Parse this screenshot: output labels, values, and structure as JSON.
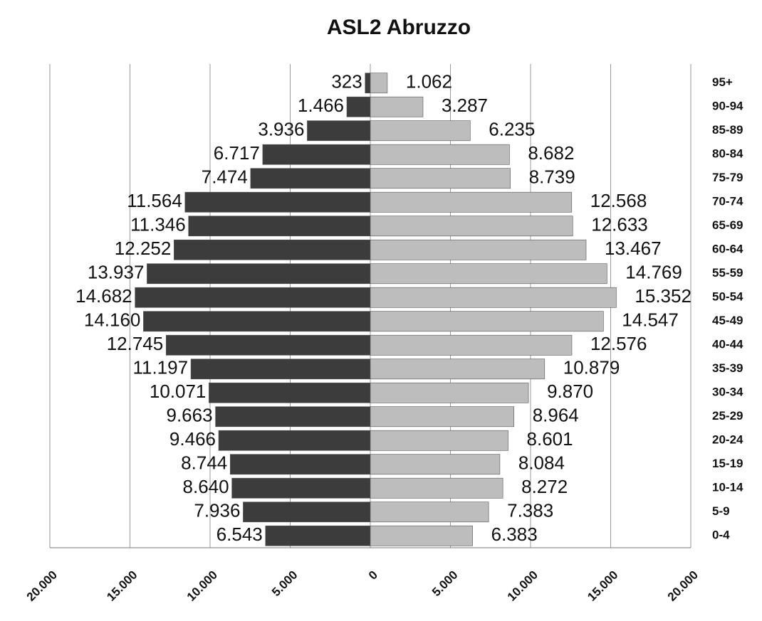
{
  "chart_data": {
    "type": "pyramid",
    "title": "ASL2 Abruzzo",
    "categories": [
      "0-4",
      "5-9",
      "10-14",
      "15-19",
      "20-24",
      "25-29",
      "30-34",
      "35-39",
      "40-44",
      "45-49",
      "50-54",
      "55-59",
      "60-64",
      "65-69",
      "70-74",
      "75-79",
      "80-84",
      "85-89",
      "90-94",
      "95+"
    ],
    "series": [
      {
        "color": "#3c3c3c",
        "values": [
          6543,
          7936,
          8640,
          8744,
          9466,
          9663,
          10071,
          11197,
          12745,
          14160,
          14682,
          13937,
          12252,
          11346,
          11564,
          7474,
          6717,
          3936,
          1466,
          323
        ],
        "value_labels": [
          "6.543",
          "7.936",
          "8.640",
          "8.744",
          "9.466",
          "9.663",
          "10.071",
          "11.197",
          "12.745",
          "14.160",
          "14.682",
          "13.937",
          "12.252",
          "11.346",
          "11.564",
          "7.474",
          "6.717",
          "3.936",
          "1.466",
          "323"
        ]
      },
      {
        "color": "#bdbdbd",
        "values": [
          6383,
          7383,
          8272,
          8084,
          8601,
          8964,
          9870,
          10879,
          12576,
          14547,
          15352,
          14769,
          13467,
          12633,
          12568,
          8739,
          8682,
          6235,
          3287,
          1062
        ],
        "value_labels": [
          "6.383",
          "7.383",
          "8.272",
          "8.084",
          "8.601",
          "8.964",
          "9.870",
          "10.879",
          "12.576",
          "14.547",
          "15.352",
          "14.769",
          "13.467",
          "12.633",
          "12.568",
          "8.739",
          "8.682",
          "6.235",
          "3.287",
          "1.062"
        ]
      }
    ],
    "xlim": [
      -20000,
      20000
    ],
    "xticks": [
      {
        "value": -20000,
        "label": "20.000"
      },
      {
        "value": -15000,
        "label": "15.000"
      },
      {
        "value": -10000,
        "label": "10.000"
      },
      {
        "value": -5000,
        "label": "5.000"
      },
      0,
      {
        "value": 5000,
        "label": "5.000"
      },
      {
        "value": 10000,
        "label": "10.000"
      },
      {
        "value": 15000,
        "label": "15.000"
      },
      {
        "value": 20000,
        "label": "20.000"
      }
    ],
    "grid": true
  }
}
